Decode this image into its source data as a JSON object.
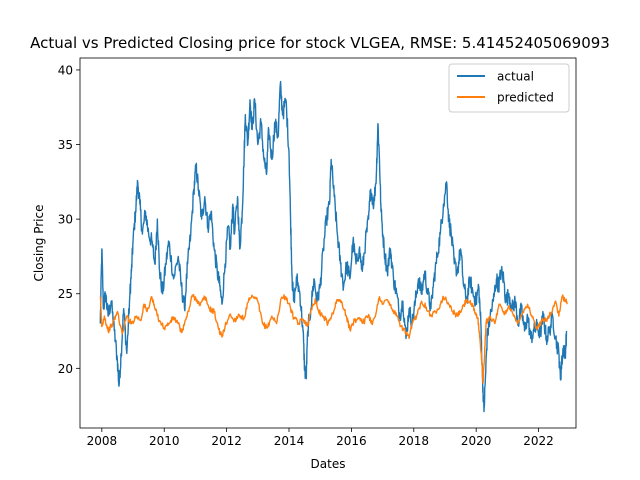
{
  "chart_data": {
    "type": "line",
    "title": "Actual vs Predicted Closing price for stock VLGEA, RMSE: 5.41452405069093",
    "xlabel": "Dates",
    "ylabel": "Closing Price",
    "xlim": [
      2007.3,
      2023.2
    ],
    "ylim": [
      16,
      40.8
    ],
    "xticks": [
      2008,
      2010,
      2012,
      2014,
      2016,
      2018,
      2020,
      2022
    ],
    "yticks": [
      20,
      25,
      30,
      35,
      40
    ],
    "grid": false,
    "legend": {
      "position": "top-right",
      "entries": [
        "actual",
        "predicted"
      ]
    },
    "series": [
      {
        "name": "actual",
        "color": "#1f77b4",
        "points": [
          [
            2007.95,
            23.0
          ],
          [
            2008.0,
            28.0
          ],
          [
            2008.05,
            24.0
          ],
          [
            2008.12,
            25.0
          ],
          [
            2008.2,
            23.5
          ],
          [
            2008.3,
            24.5
          ],
          [
            2008.4,
            22.5
          ],
          [
            2008.5,
            20.5
          ],
          [
            2008.55,
            18.8
          ],
          [
            2008.62,
            21.0
          ],
          [
            2008.7,
            24.0
          ],
          [
            2008.8,
            21.0
          ],
          [
            2008.9,
            25.0
          ],
          [
            2008.95,
            26.5
          ],
          [
            2009.0,
            28.5
          ],
          [
            2009.08,
            30.5
          ],
          [
            2009.15,
            32.5
          ],
          [
            2009.22,
            31.0
          ],
          [
            2009.3,
            29.0
          ],
          [
            2009.4,
            30.5
          ],
          [
            2009.5,
            29.0
          ],
          [
            2009.6,
            28.5
          ],
          [
            2009.7,
            27.0
          ],
          [
            2009.78,
            30.0
          ],
          [
            2009.85,
            26.5
          ],
          [
            2009.95,
            25.0
          ],
          [
            2010.05,
            27.0
          ],
          [
            2010.15,
            28.5
          ],
          [
            2010.3,
            26.0
          ],
          [
            2010.45,
            27.5
          ],
          [
            2010.55,
            25.5
          ],
          [
            2010.65,
            24.0
          ],
          [
            2010.75,
            27.0
          ],
          [
            2010.85,
            29.0
          ],
          [
            2010.95,
            32.0
          ],
          [
            2011.02,
            33.5
          ],
          [
            2011.1,
            32.0
          ],
          [
            2011.2,
            30.0
          ],
          [
            2011.3,
            31.5
          ],
          [
            2011.4,
            29.5
          ],
          [
            2011.5,
            30.5
          ],
          [
            2011.6,
            28.0
          ],
          [
            2011.7,
            26.5
          ],
          [
            2011.78,
            25.5
          ],
          [
            2011.85,
            24.3
          ],
          [
            2011.95,
            27.0
          ],
          [
            2012.05,
            29.5
          ],
          [
            2012.12,
            28.0
          ],
          [
            2012.2,
            31.0
          ],
          [
            2012.25,
            29.0
          ],
          [
            2012.35,
            31.5
          ],
          [
            2012.42,
            28.0
          ],
          [
            2012.5,
            30.5
          ],
          [
            2012.55,
            33.5
          ],
          [
            2012.6,
            37.0
          ],
          [
            2012.68,
            35.0
          ],
          [
            2012.75,
            38.0
          ],
          [
            2012.82,
            36.0
          ],
          [
            2012.9,
            38.0
          ],
          [
            2013.0,
            35.0
          ],
          [
            2013.1,
            36.5
          ],
          [
            2013.2,
            34.0
          ],
          [
            2013.28,
            33.0
          ],
          [
            2013.35,
            36.0
          ],
          [
            2013.45,
            34.0
          ],
          [
            2013.55,
            36.5
          ],
          [
            2013.65,
            35.5
          ],
          [
            2013.72,
            39.0
          ],
          [
            2013.8,
            37.0
          ],
          [
            2013.9,
            38.0
          ],
          [
            2014.0,
            34.5
          ],
          [
            2014.05,
            30.0
          ],
          [
            2014.1,
            26.0
          ],
          [
            2014.15,
            24.5
          ],
          [
            2014.25,
            26.0
          ],
          [
            2014.35,
            25.0
          ],
          [
            2014.45,
            22.5
          ],
          [
            2014.5,
            20.0
          ],
          [
            2014.55,
            19.3
          ],
          [
            2014.6,
            22.5
          ],
          [
            2014.7,
            24.0
          ],
          [
            2014.8,
            26.0
          ],
          [
            2014.9,
            24.5
          ],
          [
            2015.0,
            25.5
          ],
          [
            2015.1,
            28.0
          ],
          [
            2015.2,
            30.0
          ],
          [
            2015.3,
            31.0
          ],
          [
            2015.35,
            34.0
          ],
          [
            2015.45,
            31.5
          ],
          [
            2015.55,
            29.0
          ],
          [
            2015.65,
            27.0
          ],
          [
            2015.75,
            25.5
          ],
          [
            2015.85,
            27.0
          ],
          [
            2015.95,
            26.0
          ],
          [
            2016.05,
            28.5
          ],
          [
            2016.15,
            27.0
          ],
          [
            2016.25,
            28.0
          ],
          [
            2016.35,
            26.5
          ],
          [
            2016.45,
            28.5
          ],
          [
            2016.55,
            30.0
          ],
          [
            2016.62,
            32.0
          ],
          [
            2016.72,
            31.0
          ],
          [
            2016.8,
            33.0
          ],
          [
            2016.85,
            36.4
          ],
          [
            2016.9,
            34.0
          ],
          [
            2016.95,
            30.5
          ],
          [
            2017.05,
            28.0
          ],
          [
            2017.15,
            26.5
          ],
          [
            2017.25,
            28.0
          ],
          [
            2017.35,
            26.0
          ],
          [
            2017.45,
            25.0
          ],
          [
            2017.55,
            23.5
          ],
          [
            2017.65,
            24.5
          ],
          [
            2017.75,
            22.0
          ],
          [
            2017.85,
            24.0
          ],
          [
            2017.95,
            23.0
          ],
          [
            2018.05,
            24.5
          ],
          [
            2018.15,
            26.0
          ],
          [
            2018.25,
            25.0
          ],
          [
            2018.35,
            26.5
          ],
          [
            2018.45,
            25.0
          ],
          [
            2018.55,
            24.0
          ],
          [
            2018.65,
            26.0
          ],
          [
            2018.75,
            27.5
          ],
          [
            2018.85,
            29.0
          ],
          [
            2018.95,
            31.0
          ],
          [
            2019.05,
            32.5
          ],
          [
            2019.12,
            30.0
          ],
          [
            2019.2,
            29.0
          ],
          [
            2019.3,
            27.0
          ],
          [
            2019.4,
            26.5
          ],
          [
            2019.5,
            28.0
          ],
          [
            2019.6,
            25.5
          ],
          [
            2019.7,
            24.5
          ],
          [
            2019.8,
            26.0
          ],
          [
            2019.9,
            25.0
          ],
          [
            2020.0,
            24.5
          ],
          [
            2020.08,
            25.5
          ],
          [
            2020.15,
            23.0
          ],
          [
            2020.2,
            19.5
          ],
          [
            2020.25,
            17.1
          ],
          [
            2020.3,
            19.5
          ],
          [
            2020.35,
            22.0
          ],
          [
            2020.45,
            23.5
          ],
          [
            2020.55,
            24.5
          ],
          [
            2020.65,
            26.0
          ],
          [
            2020.72,
            25.5
          ],
          [
            2020.8,
            26.5
          ],
          [
            2020.88,
            26.0
          ],
          [
            2020.95,
            24.5
          ],
          [
            2021.05,
            25.0
          ],
          [
            2021.15,
            24.0
          ],
          [
            2021.25,
            24.5
          ],
          [
            2021.35,
            23.0
          ],
          [
            2021.45,
            24.0
          ],
          [
            2021.55,
            22.5
          ],
          [
            2021.65,
            23.5
          ],
          [
            2021.75,
            22.0
          ],
          [
            2021.85,
            22.5
          ],
          [
            2021.95,
            22.8
          ],
          [
            2022.05,
            22.3
          ],
          [
            2022.15,
            23.5
          ],
          [
            2022.25,
            22.0
          ],
          [
            2022.35,
            22.5
          ],
          [
            2022.45,
            23.5
          ],
          [
            2022.55,
            22.0
          ],
          [
            2022.65,
            21.0
          ],
          [
            2022.7,
            19.3
          ],
          [
            2022.75,
            20.5
          ],
          [
            2022.8,
            21.5
          ],
          [
            2022.85,
            20.8
          ],
          [
            2022.9,
            22.5
          ]
        ]
      },
      {
        "name": "predicted",
        "color": "#ff7f0e",
        "points": [
          [
            2007.95,
            24.8
          ],
          [
            2008.0,
            22.8
          ],
          [
            2008.08,
            23.5
          ],
          [
            2008.2,
            22.5
          ],
          [
            2008.35,
            23.0
          ],
          [
            2008.5,
            23.8
          ],
          [
            2008.65,
            22.3
          ],
          [
            2008.8,
            23.5
          ],
          [
            2008.95,
            23.0
          ],
          [
            2009.1,
            23.5
          ],
          [
            2009.25,
            23.2
          ],
          [
            2009.35,
            24.3
          ],
          [
            2009.45,
            23.8
          ],
          [
            2009.6,
            24.8
          ],
          [
            2009.7,
            24.0
          ],
          [
            2009.85,
            23.2
          ],
          [
            2010.0,
            22.7
          ],
          [
            2010.15,
            23.0
          ],
          [
            2010.3,
            23.4
          ],
          [
            2010.45,
            23.0
          ],
          [
            2010.55,
            22.4
          ],
          [
            2010.7,
            23.3
          ],
          [
            2010.8,
            24.0
          ],
          [
            2010.9,
            24.9
          ],
          [
            2011.05,
            24.6
          ],
          [
            2011.15,
            24.2
          ],
          [
            2011.3,
            24.8
          ],
          [
            2011.45,
            24.0
          ],
          [
            2011.6,
            23.8
          ],
          [
            2011.75,
            22.6
          ],
          [
            2011.85,
            22.1
          ],
          [
            2011.95,
            22.8
          ],
          [
            2012.1,
            23.6
          ],
          [
            2012.25,
            23.2
          ],
          [
            2012.4,
            23.6
          ],
          [
            2012.55,
            23.3
          ],
          [
            2012.7,
            24.5
          ],
          [
            2012.85,
            24.8
          ],
          [
            2013.0,
            24.5
          ],
          [
            2013.15,
            23.0
          ],
          [
            2013.3,
            22.7
          ],
          [
            2013.45,
            23.5
          ],
          [
            2013.6,
            23.0
          ],
          [
            2013.75,
            24.7
          ],
          [
            2013.9,
            24.8
          ],
          [
            2014.05,
            24.0
          ],
          [
            2014.15,
            23.4
          ],
          [
            2014.3,
            23.0
          ],
          [
            2014.45,
            23.3
          ],
          [
            2014.6,
            22.9
          ],
          [
            2014.75,
            24.2
          ],
          [
            2014.85,
            24.6
          ],
          [
            2014.95,
            23.8
          ],
          [
            2015.1,
            23.5
          ],
          [
            2015.25,
            23.0
          ],
          [
            2015.4,
            23.7
          ],
          [
            2015.55,
            24.6
          ],
          [
            2015.7,
            24.4
          ],
          [
            2015.85,
            23.4
          ],
          [
            2015.95,
            22.6
          ],
          [
            2016.1,
            23.2
          ],
          [
            2016.25,
            23.4
          ],
          [
            2016.4,
            23.1
          ],
          [
            2016.55,
            23.6
          ],
          [
            2016.65,
            23.0
          ],
          [
            2016.8,
            23.8
          ],
          [
            2016.9,
            24.8
          ],
          [
            2017.0,
            24.3
          ],
          [
            2017.15,
            24.6
          ],
          [
            2017.3,
            24.0
          ],
          [
            2017.45,
            23.5
          ],
          [
            2017.6,
            22.8
          ],
          [
            2017.75,
            22.4
          ],
          [
            2017.85,
            22.0
          ],
          [
            2017.95,
            23.0
          ],
          [
            2018.1,
            23.6
          ],
          [
            2018.25,
            24.5
          ],
          [
            2018.4,
            24.1
          ],
          [
            2018.55,
            23.5
          ],
          [
            2018.7,
            23.8
          ],
          [
            2018.85,
            24.3
          ],
          [
            2018.95,
            24.8
          ],
          [
            2019.1,
            24.4
          ],
          [
            2019.25,
            23.8
          ],
          [
            2019.4,
            23.5
          ],
          [
            2019.55,
            24.0
          ],
          [
            2019.7,
            24.6
          ],
          [
            2019.85,
            24.3
          ],
          [
            2019.95,
            23.8
          ],
          [
            2020.05,
            23.4
          ],
          [
            2020.12,
            22.0
          ],
          [
            2020.18,
            20.5
          ],
          [
            2020.22,
            19.0
          ],
          [
            2020.27,
            21.0
          ],
          [
            2020.32,
            23.1
          ],
          [
            2020.45,
            23.5
          ],
          [
            2020.6,
            23.0
          ],
          [
            2020.75,
            24.3
          ],
          [
            2020.9,
            23.6
          ],
          [
            2021.05,
            24.2
          ],
          [
            2021.2,
            23.5
          ],
          [
            2021.35,
            23.1
          ],
          [
            2021.5,
            23.8
          ],
          [
            2021.65,
            24.3
          ],
          [
            2021.8,
            23.4
          ],
          [
            2021.95,
            22.6
          ],
          [
            2022.1,
            23.2
          ],
          [
            2022.25,
            23.3
          ],
          [
            2022.4,
            23.7
          ],
          [
            2022.55,
            24.5
          ],
          [
            2022.65,
            23.5
          ],
          [
            2022.75,
            24.8
          ],
          [
            2022.85,
            24.6
          ],
          [
            2022.92,
            24.3
          ]
        ]
      }
    ]
  }
}
